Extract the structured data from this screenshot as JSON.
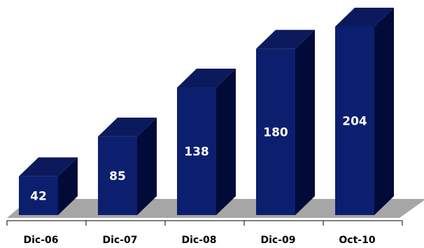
{
  "chart_data": {
    "type": "bar",
    "categories": [
      "Dic-06",
      "Dic-07",
      "Dic-08",
      "Dic-09",
      "Oct-10"
    ],
    "values": [
      42,
      85,
      138,
      180,
      204
    ],
    "title": "",
    "xlabel": "",
    "ylabel": "",
    "ylim": [
      0,
      204
    ],
    "grid": false,
    "legend": "none",
    "style": "3d-bar",
    "colors": {
      "bar_front": "#0c1f6e",
      "bar_top": "#0a1a5c",
      "bar_side": "#020a38",
      "floor": "#a6a6a6",
      "axis": "#000000"
    }
  }
}
